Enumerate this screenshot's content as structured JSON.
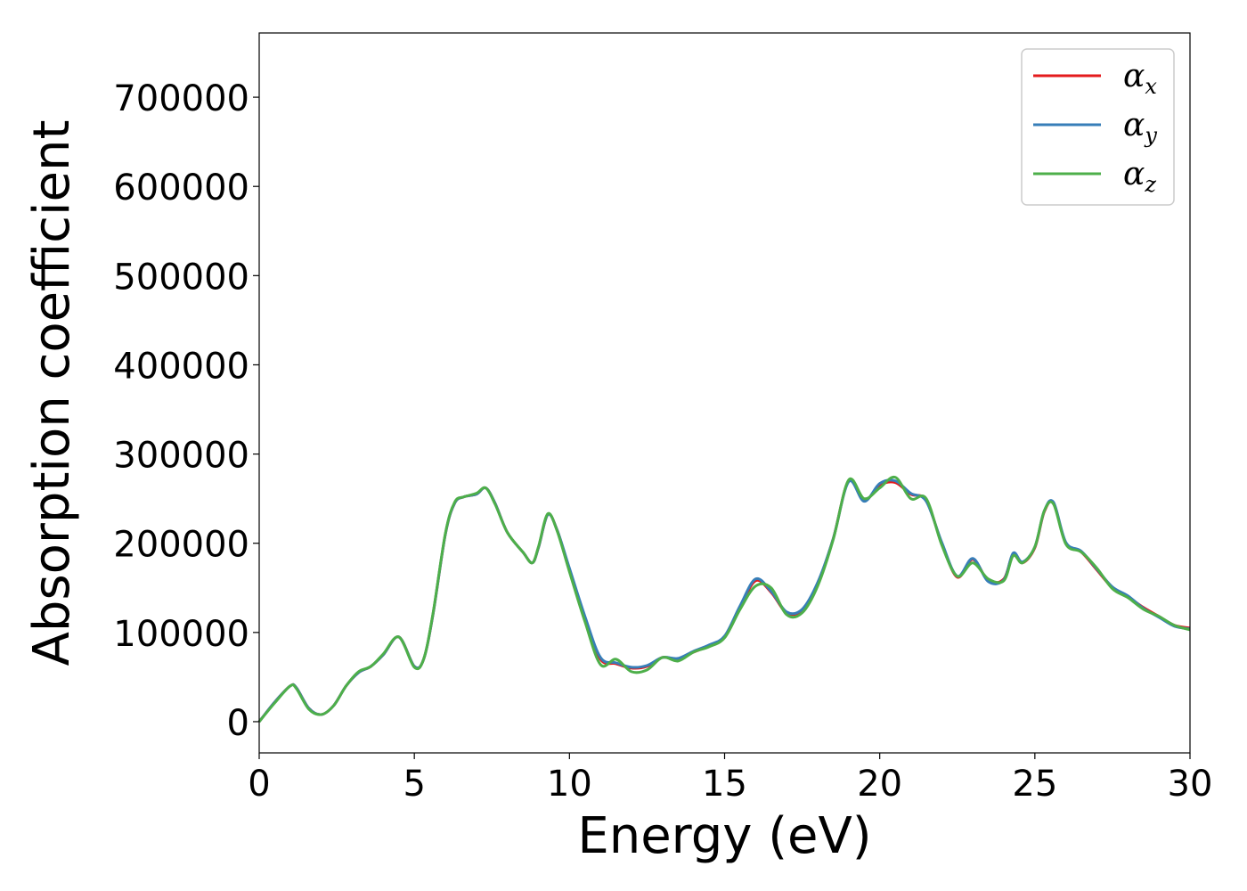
{
  "chart_data": {
    "type": "line",
    "title": "",
    "xlabel": "Energy (eV)",
    "ylabel": "Absorption coefficient",
    "xlim": [
      0,
      30
    ],
    "ylim": [
      -35000,
      772000
    ],
    "xticks": [
      0,
      5,
      10,
      15,
      20,
      25,
      30
    ],
    "yticks": [
      0,
      100000,
      200000,
      300000,
      400000,
      500000,
      600000,
      700000
    ],
    "grid": false,
    "legend_position": "top-right",
    "series": [
      {
        "name": "α_x",
        "symbol": "α",
        "subscript": "x",
        "color": "#e41a1c",
        "x": [
          0,
          0.5,
          1,
          1.2,
          1.6,
          2,
          2.4,
          2.8,
          3.2,
          3.6,
          4,
          4.5,
          5,
          5.3,
          5.6,
          6,
          6.3,
          6.6,
          7,
          7.3,
          7.6,
          8,
          8.5,
          8.8,
          9,
          9.3,
          9.6,
          10,
          10.5,
          11,
          11.5,
          12,
          12.5,
          13,
          13.5,
          14,
          14.5,
          15,
          15.5,
          16,
          16.5,
          17,
          17.5,
          18,
          18.5,
          19,
          19.5,
          20,
          20.5,
          21,
          21.5,
          22,
          22.5,
          23,
          23.5,
          24,
          24.3,
          24.6,
          25,
          25.3,
          25.6,
          26,
          26.5,
          27,
          27.5,
          28,
          28.5,
          29,
          29.5,
          30
        ],
        "values": [
          0,
          22000,
          40000,
          38000,
          15000,
          8000,
          18000,
          40000,
          55000,
          62000,
          75000,
          95000,
          62000,
          70000,
          120000,
          210000,
          245000,
          252000,
          255000,
          262000,
          245000,
          212000,
          190000,
          178000,
          195000,
          232000,
          215000,
          170000,
          115000,
          70000,
          65000,
          60000,
          62000,
          72000,
          70000,
          78000,
          85000,
          95000,
          128000,
          158000,
          145000,
          122000,
          125000,
          155000,
          205000,
          270000,
          248000,
          265000,
          268000,
          255000,
          248000,
          200000,
          162000,
          182000,
          158000,
          160000,
          188000,
          178000,
          195000,
          235000,
          245000,
          200000,
          190000,
          170000,
          150000,
          140000,
          128000,
          118000,
          108000,
          105000
        ]
      },
      {
        "name": "α_y",
        "symbol": "α",
        "subscript": "y",
        "color": "#377eb8",
        "x": [
          0,
          0.5,
          1,
          1.2,
          1.6,
          2,
          2.4,
          2.8,
          3.2,
          3.6,
          4,
          4.5,
          5,
          5.3,
          5.6,
          6,
          6.3,
          6.6,
          7,
          7.3,
          7.6,
          8,
          8.5,
          8.8,
          9,
          9.3,
          9.6,
          10,
          10.5,
          11,
          11.5,
          12,
          12.5,
          13,
          13.5,
          14,
          14.5,
          15,
          15.5,
          16,
          16.5,
          17,
          17.5,
          18,
          18.5,
          19,
          19.5,
          20,
          20.5,
          21,
          21.5,
          22,
          22.5,
          23,
          23.5,
          24,
          24.3,
          24.6,
          25,
          25.3,
          25.6,
          26,
          26.5,
          27,
          27.5,
          28,
          28.5,
          29,
          29.5,
          30
        ],
        "values": [
          0,
          22000,
          40000,
          38000,
          15000,
          8000,
          18000,
          40000,
          55000,
          62000,
          75000,
          95000,
          62000,
          70000,
          120000,
          210000,
          245000,
          252000,
          255000,
          262000,
          245000,
          212000,
          190000,
          178000,
          195000,
          232000,
          215000,
          172000,
          118000,
          72000,
          66000,
          61000,
          63000,
          72000,
          71000,
          79000,
          86000,
          96000,
          130000,
          160000,
          146000,
          123000,
          126000,
          156000,
          205000,
          269000,
          247000,
          267000,
          270000,
          256000,
          247000,
          201000,
          163000,
          183000,
          157000,
          159000,
          189000,
          179000,
          196000,
          236000,
          246000,
          201000,
          191000,
          171000,
          151000,
          141000,
          127000,
          117000,
          107000,
          104000
        ]
      },
      {
        "name": "α_z",
        "symbol": "α",
        "subscript": "z",
        "color": "#4daf4a",
        "x": [
          0,
          0.5,
          1,
          1.2,
          1.6,
          2,
          2.4,
          2.8,
          3.2,
          3.6,
          4,
          4.5,
          5,
          5.3,
          5.6,
          6,
          6.3,
          6.6,
          7,
          7.3,
          7.6,
          8,
          8.5,
          8.8,
          9,
          9.3,
          9.6,
          10,
          10.5,
          11,
          11.5,
          12,
          12.5,
          13,
          13.5,
          14,
          14.5,
          15,
          15.5,
          16,
          16.5,
          17,
          17.5,
          18,
          18.5,
          19,
          19.5,
          20,
          20.5,
          21,
          21.5,
          22,
          22.5,
          23,
          23.5,
          24,
          24.3,
          24.6,
          25,
          25.3,
          25.6,
          26,
          26.5,
          27,
          27.5,
          28,
          28.5,
          29,
          29.5,
          30
        ],
        "values": [
          0,
          21000,
          40000,
          37000,
          14000,
          8000,
          18000,
          40000,
          56000,
          62000,
          76000,
          95000,
          61000,
          70000,
          121000,
          211000,
          246000,
          252000,
          256000,
          262000,
          244000,
          212000,
          190000,
          178000,
          196000,
          233000,
          214000,
          168000,
          112000,
          64000,
          70000,
          56000,
          58000,
          72000,
          68000,
          78000,
          84000,
          94000,
          126000,
          152000,
          150000,
          120000,
          122000,
          152000,
          204000,
          271000,
          250000,
          262000,
          274000,
          250000,
          250000,
          198000,
          163000,
          178000,
          160000,
          158000,
          186000,
          178000,
          196000,
          236000,
          244000,
          199000,
          190000,
          172000,
          149000,
          139000,
          126000,
          118000,
          108000,
          103000
        ]
      }
    ]
  }
}
